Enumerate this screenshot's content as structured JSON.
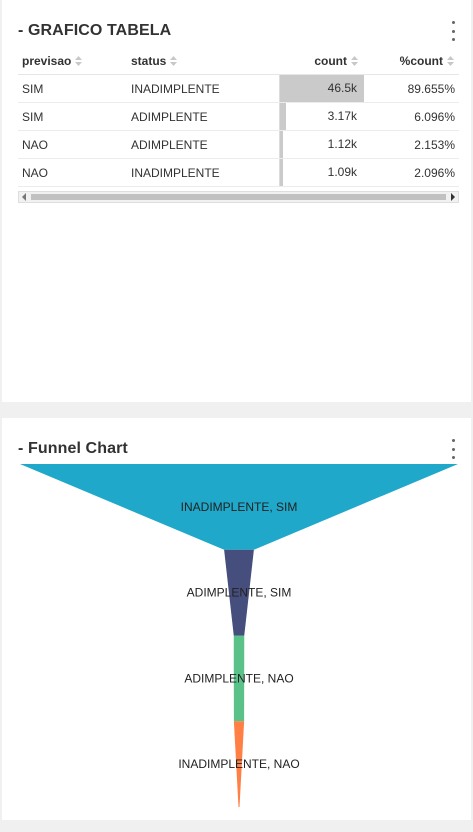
{
  "table_card": {
    "title": "- GRAFICO TABELA",
    "menu_icon": "kebab-menu-icon",
    "columns": [
      "previsao",
      "status",
      "count",
      "%count"
    ],
    "rows": [
      {
        "previsao": "SIM",
        "status": "INADIMPLENTE",
        "count": "46.5k",
        "pct": "89.655%",
        "count_fraction": 1.0
      },
      {
        "previsao": "SIM",
        "status": "ADIMPLENTE",
        "count": "3.17k",
        "pct": "6.096%",
        "count_fraction": 0.068
      },
      {
        "previsao": "NAO",
        "status": "ADIMPLENTE",
        "count": "1.12k",
        "pct": "2.153%",
        "count_fraction": 0.024
      },
      {
        "previsao": "NAO",
        "status": "INADIMPLENTE",
        "count": "1.09k",
        "pct": "2.096%",
        "count_fraction": 0.023
      }
    ],
    "colors": {
      "count_bar": "#cacaca"
    }
  },
  "funnel_card": {
    "title": "- Funnel Chart",
    "menu_icon": "kebab-menu-icon"
  },
  "chart_data": {
    "type": "funnel",
    "title": "",
    "categories": [
      "INADIMPLENTE, SIM",
      "ADIMPLENTE, SIM",
      "ADIMPLENTE, NAO",
      "INADIMPLENTE, NAO"
    ],
    "values": [
      89.655,
      6.096,
      2.153,
      2.096
    ],
    "colors": [
      "#1fa8c9",
      "#454e7c",
      "#5ac189",
      "#ff7f44"
    ]
  }
}
